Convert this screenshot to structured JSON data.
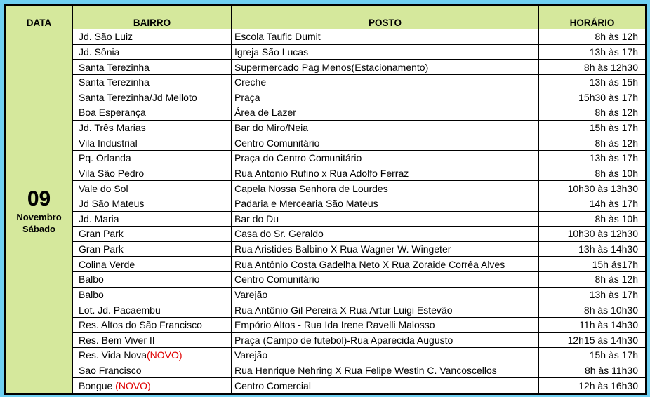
{
  "headers": {
    "data": "DATA",
    "bairro": "BAIRRO",
    "posto": "POSTO",
    "horario": "HORÁRIO"
  },
  "date": {
    "day": "09",
    "month": "Novembro",
    "weekday": "Sábado"
  },
  "colors": {
    "background": "#6fd0f2",
    "header": "#d5e89c",
    "novo": "#e00000"
  },
  "rows": [
    {
      "bairro": "Jd. São Luiz",
      "posto": "Escola Taufic Dumit",
      "horario": "8h às 12h"
    },
    {
      "bairro": "Jd. Sônia",
      "posto": "Igreja São Lucas",
      "horario": "13h às 17h"
    },
    {
      "bairro": "Santa Terezinha",
      "posto": "Supermercado  Pag Menos(Estacionamento)",
      "horario": "8h às 12h30"
    },
    {
      "bairro": "Santa Terezinha",
      "posto": "Creche",
      "horario": "13h às 15h"
    },
    {
      "bairro": "Santa Terezinha/Jd Melloto",
      "posto": "Praça",
      "horario": "15h30 às 17h"
    },
    {
      "bairro": "Boa Esperança",
      "posto": "Área de Lazer",
      "horario": "8h às 12h"
    },
    {
      "bairro": "Jd. Três Marias",
      "posto": "Bar do Miro/Neia",
      "horario": "15h às 17h"
    },
    {
      "bairro": "Vila Industrial",
      "posto": "Centro Comunitário",
      "horario": "8h às 12h"
    },
    {
      "bairro": "Pq. Orlanda",
      "posto": "Praça do Centro Comunitário",
      "horario": "13h às 17h"
    },
    {
      "bairro": "Vila São Pedro",
      "posto": "Rua Antonio Rufino x Rua Adolfo Ferraz",
      "horario": "8h às 10h"
    },
    {
      "bairro": "Vale do Sol",
      "posto": "Capela Nossa Senhora de Lourdes",
      "horario": "10h30 às 13h30"
    },
    {
      "bairro": "Jd São Mateus",
      "posto": "Padaria e Mercearia São Mateus",
      "horario": "14h às 17h"
    },
    {
      "bairro": "Jd. Maria",
      "posto": "Bar do Du",
      "horario": "8h às 10h"
    },
    {
      "bairro": "Gran Park",
      "posto": "Casa do Sr. Geraldo",
      "horario": "10h30 às 12h30"
    },
    {
      "bairro": "Gran Park",
      "posto": "Rua Aristides Balbino X Rua Wagner W. Wingeter",
      "horario": "13h às 14h30"
    },
    {
      "bairro": "Colina Verde",
      "posto": "Rua Antônio Costa Gadelha Neto X Rua Zoraide Corrêa Alves",
      "horario": "15h ás17h"
    },
    {
      "bairro": "Balbo",
      "posto": "Centro Comunitário",
      "horario": "8h às 12h"
    },
    {
      "bairro": "Balbo",
      "posto": "Varejão",
      "horario": "13h às 17h"
    },
    {
      "bairro": "Lot. Jd. Pacaembu",
      "posto": "Rua Antônio Gil Pereira X Rua Artur Luigi Estevão",
      "horario": "8h ás 10h30"
    },
    {
      "bairro": "Res. Altos do São Francisco",
      "posto": "Empório Altos - Rua Ida Irene Ravelli Malosso",
      "horario": "11h às 14h30"
    },
    {
      "bairro": "Res. Bem Viver II",
      "posto": "Praça (Campo de futebol)-Rua Aparecida Augusto",
      "horario": "12h15 às 14h30"
    },
    {
      "bairro": "Res. Vida Nova",
      "tag": "(NOVO)",
      "posto": "Varejão",
      "horario": "15h às 17h"
    },
    {
      "bairro": "Sao Francisco",
      "posto": "Rua Henrique Nehring X Rua Felipe Westin C. Vancoscellos",
      "horario": "8h às 11h30"
    },
    {
      "bairro": "Bongue ",
      "tag": "(NOVO)",
      "posto": "Centro Comercial",
      "horario": "12h às 16h30"
    }
  ]
}
